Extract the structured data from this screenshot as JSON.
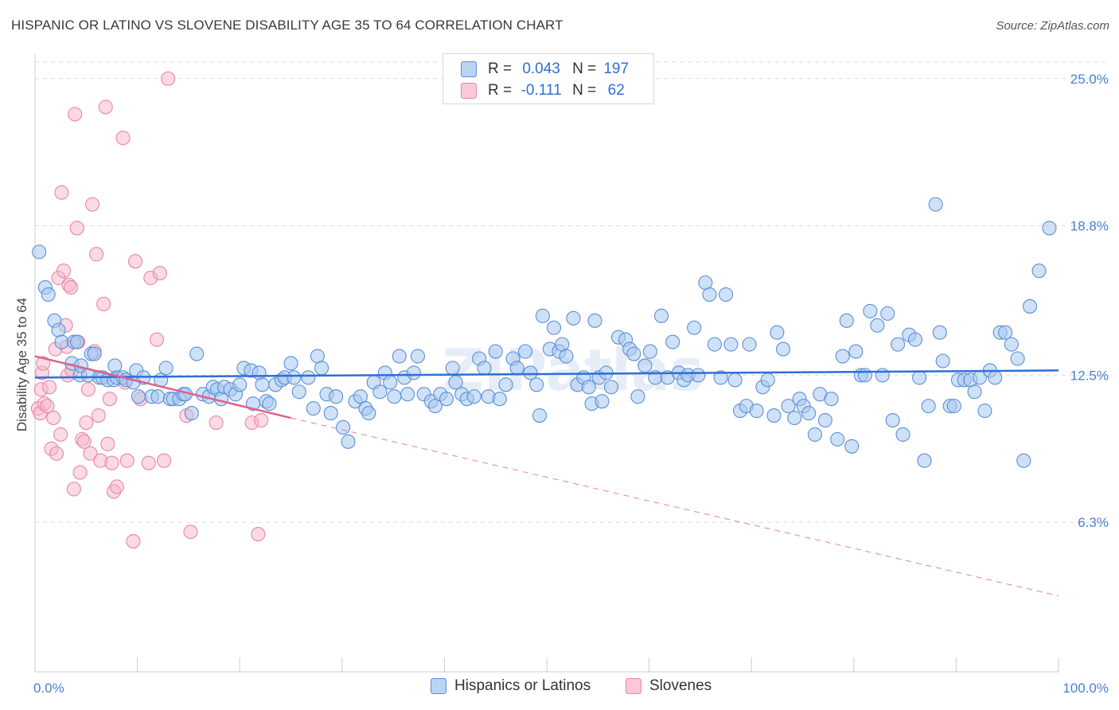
{
  "title": "HISPANIC OR LATINO VS SLOVENE DISABILITY AGE 35 TO 64 CORRELATION CHART",
  "source": "Source: ZipAtlas.com",
  "watermark": "ZIPatlas",
  "legend_stats": {
    "r_label": "R =",
    "n_label": "N =",
    "rows": [
      {
        "r": "0.043",
        "n": "197"
      },
      {
        "r": "-0.111",
        "n": "62"
      }
    ]
  },
  "colors": {
    "blue_fill": "#a8c8f0",
    "blue_stroke": "#5b8fd6",
    "blue_line": "#2f6fd6",
    "pink_fill": "#f7b6c8",
    "pink_stroke": "#e886a4",
    "pink_line": "#e0608a",
    "tick_text": "#4a7fd0"
  },
  "chart_data": {
    "type": "scatter",
    "title": "HISPANIC OR LATINO VS SLOVENE DISABILITY AGE 35 TO 64 CORRELATION CHART",
    "xlabel": "",
    "ylabel": "Disability Age 35 to 64",
    "xlim": [
      0,
      100
    ],
    "ylim": [
      0,
      26.3
    ],
    "x_tick_labels": [
      "0.0%",
      "100.0%"
    ],
    "y_ticks": [
      6.3,
      12.5,
      18.8,
      25.0
    ],
    "y_tick_labels": [
      "6.3%",
      "12.5%",
      "18.8%",
      "25.0%"
    ],
    "grid": true,
    "legend": "top-center",
    "series": [
      {
        "name": "Hispanics or Latinos",
        "color": "#a8c8f0",
        "trend": {
          "x": [
            0,
            100
          ],
          "y": [
            12.4,
            12.7
          ]
        },
        "points": [
          [
            0.4,
            17.7
          ],
          [
            1.0,
            16.2
          ],
          [
            1.3,
            15.9
          ],
          [
            1.9,
            14.8
          ],
          [
            2.3,
            14.4
          ],
          [
            2.6,
            13.9
          ],
          [
            3.6,
            13.0
          ],
          [
            3.8,
            13.9
          ],
          [
            4.1,
            13.9
          ],
          [
            4.4,
            12.5
          ],
          [
            4.5,
            12.9
          ],
          [
            5.2,
            12.5
          ],
          [
            5.5,
            13.4
          ],
          [
            5.8,
            13.4
          ],
          [
            6.3,
            12.4
          ],
          [
            6.6,
            12.4
          ],
          [
            7.1,
            12.3
          ],
          [
            7.7,
            12.3
          ],
          [
            7.8,
            12.9
          ],
          [
            8.0,
            12.4
          ],
          [
            8.6,
            12.4
          ],
          [
            8.9,
            12.3
          ],
          [
            9.6,
            12.2
          ],
          [
            9.9,
            12.7
          ],
          [
            10.1,
            11.6
          ],
          [
            10.6,
            12.4
          ],
          [
            11.4,
            11.6
          ],
          [
            12.0,
            11.6
          ],
          [
            12.3,
            12.3
          ],
          [
            12.8,
            12.8
          ],
          [
            13.2,
            11.5
          ],
          [
            13.5,
            11.5
          ],
          [
            14.1,
            11.5
          ],
          [
            14.5,
            11.7
          ],
          [
            14.7,
            11.7
          ],
          [
            15.3,
            10.9
          ],
          [
            15.8,
            13.4
          ],
          [
            16.4,
            11.7
          ],
          [
            17.0,
            11.6
          ],
          [
            17.4,
            12.0
          ],
          [
            17.8,
            11.9
          ],
          [
            18.2,
            11.5
          ],
          [
            18.5,
            12.0
          ],
          [
            19.1,
            11.9
          ],
          [
            19.6,
            11.7
          ],
          [
            20.0,
            12.1
          ],
          [
            20.4,
            12.8
          ],
          [
            21.1,
            12.7
          ],
          [
            21.3,
            11.3
          ],
          [
            21.9,
            12.6
          ],
          [
            22.2,
            12.1
          ],
          [
            22.6,
            11.4
          ],
          [
            22.9,
            11.3
          ],
          [
            23.5,
            12.1
          ],
          [
            24.1,
            12.3
          ],
          [
            24.4,
            12.4
          ],
          [
            25.0,
            13.0
          ],
          [
            25.3,
            12.4
          ],
          [
            25.8,
            11.8
          ],
          [
            26.7,
            12.4
          ],
          [
            27.2,
            11.1
          ],
          [
            27.6,
            13.3
          ],
          [
            28.0,
            12.8
          ],
          [
            28.5,
            11.7
          ],
          [
            28.9,
            10.9
          ],
          [
            29.4,
            11.6
          ],
          [
            30.1,
            10.3
          ],
          [
            30.6,
            9.7
          ],
          [
            31.3,
            11.4
          ],
          [
            31.8,
            11.6
          ],
          [
            32.3,
            11.1
          ],
          [
            32.6,
            10.9
          ],
          [
            33.1,
            12.2
          ],
          [
            33.7,
            11.8
          ],
          [
            34.2,
            12.6
          ],
          [
            34.7,
            12.2
          ],
          [
            35.1,
            11.6
          ],
          [
            35.6,
            13.3
          ],
          [
            36.1,
            12.4
          ],
          [
            36.4,
            11.7
          ],
          [
            37.0,
            12.6
          ],
          [
            37.4,
            13.3
          ],
          [
            38.0,
            11.7
          ],
          [
            38.7,
            11.4
          ],
          [
            39.1,
            11.2
          ],
          [
            39.6,
            11.7
          ],
          [
            40.2,
            11.5
          ],
          [
            40.8,
            12.8
          ],
          [
            41.1,
            12.2
          ],
          [
            41.7,
            11.7
          ],
          [
            42.2,
            11.5
          ],
          [
            42.9,
            11.6
          ],
          [
            43.4,
            13.2
          ],
          [
            43.9,
            12.8
          ],
          [
            44.3,
            11.6
          ],
          [
            45.0,
            13.5
          ],
          [
            45.4,
            11.5
          ],
          [
            46.0,
            12.1
          ],
          [
            46.7,
            13.2
          ],
          [
            47.1,
            12.8
          ],
          [
            47.9,
            13.5
          ],
          [
            48.4,
            12.6
          ],
          [
            49.0,
            12.1
          ],
          [
            49.3,
            10.8
          ],
          [
            49.6,
            15.0
          ],
          [
            50.3,
            13.6
          ],
          [
            50.7,
            14.5
          ],
          [
            51.2,
            13.5
          ],
          [
            51.5,
            13.8
          ],
          [
            51.9,
            13.3
          ],
          [
            52.6,
            14.9
          ],
          [
            53.0,
            12.1
          ],
          [
            53.6,
            12.4
          ],
          [
            54.1,
            12.0
          ],
          [
            54.4,
            11.3
          ],
          [
            54.7,
            14.8
          ],
          [
            55.1,
            12.4
          ],
          [
            55.4,
            11.4
          ],
          [
            55.8,
            12.6
          ],
          [
            56.3,
            12.0
          ],
          [
            57.0,
            14.1
          ],
          [
            57.7,
            14.0
          ],
          [
            58.1,
            13.6
          ],
          [
            58.5,
            13.4
          ],
          [
            58.9,
            11.6
          ],
          [
            59.6,
            12.9
          ],
          [
            60.1,
            13.5
          ],
          [
            60.6,
            12.4
          ],
          [
            61.2,
            15.0
          ],
          [
            61.8,
            12.4
          ],
          [
            62.3,
            13.9
          ],
          [
            62.9,
            12.6
          ],
          [
            63.4,
            12.3
          ],
          [
            63.8,
            12.5
          ],
          [
            64.4,
            14.5
          ],
          [
            64.8,
            12.5
          ],
          [
            65.5,
            16.4
          ],
          [
            65.9,
            15.9
          ],
          [
            66.4,
            13.8
          ],
          [
            67.0,
            12.4
          ],
          [
            67.5,
            15.9
          ],
          [
            68.0,
            13.8
          ],
          [
            68.4,
            12.3
          ],
          [
            68.9,
            11.0
          ],
          [
            69.5,
            11.2
          ],
          [
            69.8,
            13.8
          ],
          [
            70.5,
            11.0
          ],
          [
            71.1,
            12.0
          ],
          [
            71.6,
            12.3
          ],
          [
            72.2,
            10.8
          ],
          [
            72.5,
            14.3
          ],
          [
            73.1,
            13.6
          ],
          [
            73.6,
            11.2
          ],
          [
            74.2,
            10.7
          ],
          [
            74.7,
            11.5
          ],
          [
            75.1,
            11.2
          ],
          [
            75.6,
            10.9
          ],
          [
            76.2,
            10.0
          ],
          [
            76.7,
            11.7
          ],
          [
            77.2,
            10.6
          ],
          [
            77.8,
            11.5
          ],
          [
            78.4,
            9.8
          ],
          [
            78.9,
            13.3
          ],
          [
            79.3,
            14.8
          ],
          [
            79.8,
            9.5
          ],
          [
            80.2,
            13.5
          ],
          [
            80.7,
            12.5
          ],
          [
            81.1,
            12.5
          ],
          [
            81.6,
            15.2
          ],
          [
            82.3,
            14.6
          ],
          [
            82.8,
            12.5
          ],
          [
            83.3,
            15.1
          ],
          [
            83.8,
            10.6
          ],
          [
            84.3,
            13.8
          ],
          [
            84.8,
            10.0
          ],
          [
            85.4,
            14.2
          ],
          [
            86.0,
            14.0
          ],
          [
            86.4,
            12.4
          ],
          [
            86.9,
            8.9
          ],
          [
            87.3,
            11.2
          ],
          [
            88.0,
            19.7
          ],
          [
            88.4,
            14.3
          ],
          [
            88.7,
            13.1
          ],
          [
            89.4,
            11.2
          ],
          [
            89.8,
            11.2
          ],
          [
            90.2,
            12.3
          ],
          [
            90.8,
            12.3
          ],
          [
            91.4,
            12.3
          ],
          [
            91.8,
            11.8
          ],
          [
            92.3,
            12.4
          ],
          [
            92.8,
            11.0
          ],
          [
            93.3,
            12.7
          ],
          [
            93.8,
            12.4
          ],
          [
            94.3,
            14.3
          ],
          [
            94.8,
            14.3
          ],
          [
            95.4,
            13.8
          ],
          [
            96.0,
            13.2
          ],
          [
            96.6,
            8.9
          ],
          [
            97.2,
            15.4
          ],
          [
            98.1,
            16.9
          ],
          [
            99.1,
            18.7
          ]
        ]
      },
      {
        "name": "Slovenes",
        "color": "#f7b6c8",
        "trend": {
          "x": [
            0,
            25
          ],
          "y": [
            13.3,
            10.7
          ]
        },
        "trend_extension": {
          "x": [
            25,
            100
          ],
          "y": [
            10.7,
            3.2
          ]
        },
        "points": [
          [
            0.3,
            11.1
          ],
          [
            0.5,
            10.9
          ],
          [
            0.6,
            11.9
          ],
          [
            0.7,
            12.6
          ],
          [
            0.8,
            13.0
          ],
          [
            0.9,
            11.3
          ],
          [
            1.2,
            11.2
          ],
          [
            1.4,
            12.0
          ],
          [
            1.6,
            9.4
          ],
          [
            1.8,
            10.7
          ],
          [
            2.0,
            13.6
          ],
          [
            2.1,
            9.2
          ],
          [
            2.3,
            16.6
          ],
          [
            2.5,
            10.0
          ],
          [
            2.6,
            20.2
          ],
          [
            2.8,
            16.9
          ],
          [
            3.0,
            14.6
          ],
          [
            3.1,
            13.7
          ],
          [
            3.2,
            12.5
          ],
          [
            3.3,
            16.3
          ],
          [
            3.5,
            16.2
          ],
          [
            3.6,
            12.7
          ],
          [
            3.8,
            7.7
          ],
          [
            3.9,
            23.5
          ],
          [
            4.1,
            18.7
          ],
          [
            4.2,
            13.9
          ],
          [
            4.4,
            8.4
          ],
          [
            4.6,
            9.8
          ],
          [
            4.8,
            9.7
          ],
          [
            5.0,
            10.5
          ],
          [
            5.2,
            11.9
          ],
          [
            5.4,
            9.2
          ],
          [
            5.6,
            19.7
          ],
          [
            5.8,
            13.5
          ],
          [
            6.0,
            17.6
          ],
          [
            6.2,
            10.8
          ],
          [
            6.4,
            8.9
          ],
          [
            6.7,
            15.5
          ],
          [
            6.9,
            23.8
          ],
          [
            7.1,
            9.6
          ],
          [
            7.3,
            11.5
          ],
          [
            7.5,
            8.8
          ],
          [
            7.7,
            7.6
          ],
          [
            8.0,
            7.8
          ],
          [
            8.6,
            22.5
          ],
          [
            8.8,
            12.2
          ],
          [
            9.0,
            8.9
          ],
          [
            9.6,
            5.5
          ],
          [
            9.8,
            17.3
          ],
          [
            10.3,
            11.5
          ],
          [
            11.1,
            8.8
          ],
          [
            11.3,
            16.6
          ],
          [
            11.9,
            14.0
          ],
          [
            12.2,
            16.8
          ],
          [
            12.6,
            8.9
          ],
          [
            13.0,
            25.0
          ],
          [
            14.8,
            10.8
          ],
          [
            15.2,
            5.9
          ],
          [
            17.7,
            10.5
          ],
          [
            21.2,
            10.5
          ],
          [
            21.8,
            5.8
          ],
          [
            22.1,
            10.6
          ]
        ]
      }
    ]
  },
  "bottom_legend": [
    {
      "label": "Hispanics or Latinos"
    },
    {
      "label": "Slovenes"
    }
  ]
}
